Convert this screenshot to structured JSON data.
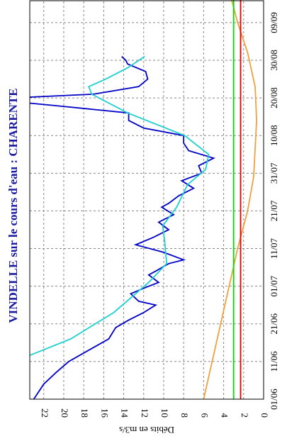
{
  "chart_data": {
    "type": "line",
    "title": "VINDELLE sur le cours d'eau : CHARENTE",
    "y_label": "Débits en m3/s",
    "xlim": [
      "01/06",
      "15/09"
    ],
    "xticks": [
      "01/06",
      "11/06",
      "21/06",
      "01/07",
      "11/07",
      "21/07",
      "31/07",
      "10/08",
      "20/08",
      "30/08",
      "09/09"
    ],
    "ylim": [
      0,
      23.4
    ],
    "yticks": [
      0,
      2,
      4,
      6,
      8,
      10,
      12,
      14,
      16,
      18,
      20,
      22
    ],
    "grid": true,
    "series": [
      {
        "color": "#0000c8",
        "x": [
          "01/06",
          "05/06",
          "08/06",
          "11/06",
          "14/06",
          "17/06",
          "20/06",
          "22/06",
          "24/06",
          "26/06",
          "27/06",
          "29/06",
          "01/07",
          "02/07",
          "04/07",
          "05/07",
          "07/07",
          "08/07",
          "10/07",
          "12/07",
          "14/07",
          "16/07",
          "18/07",
          "20/07",
          "22/07",
          "23/07",
          "25/07",
          "27/07",
          "29/07",
          "31/07",
          "02/08",
          "04/08",
          "06/08",
          "08/08",
          "10/08",
          "12/08",
          "14/08",
          "16/08",
          "18/08",
          "19/08",
          "20/08",
          "21/08",
          "23/08",
          "25/08",
          "27/08",
          "29/08",
          "30/08",
          "31/08"
        ],
        "values": [
          23,
          22,
          20.8,
          19.5,
          17.5,
          15.5,
          14.8,
          13.5,
          12,
          10.8,
          12.5,
          13.3,
          11.5,
          10.5,
          11.5,
          10.8,
          9.5,
          8,
          10,
          12.8,
          11,
          9.5,
          10.5,
          9,
          10.2,
          9.5,
          8.5,
          7,
          8.2,
          6.2,
          6.5,
          5,
          7.5,
          8,
          8,
          12,
          13.5,
          13.5,
          21,
          25,
          25,
          17,
          12.5,
          11.6,
          11.8,
          13.6,
          13.8,
          14.2
        ]
      },
      {
        "color": "#20d0d0",
        "x": [
          "12/06",
          "17/06",
          "24/06",
          "02/07",
          "07/07",
          "13/07",
          "17/07",
          "22/07",
          "28/07",
          "01/08",
          "05/08",
          "10/08",
          "16/08",
          "21/08",
          "23/08",
          "25/08",
          "28/08",
          "31/08"
        ],
        "values": [
          24,
          19.3,
          15,
          11.5,
          9.7,
          9.9,
          10.1,
          8.7,
          7.6,
          5.8,
          5.5,
          7.9,
          13.6,
          17.2,
          17.5,
          15.8,
          13.6,
          11.9
        ]
      },
      {
        "color": "#f0a040",
        "x": [
          "01/06",
          "21/06",
          "11/07",
          "21/07",
          "30/07",
          "14/08",
          "23/08",
          "01/09",
          "09/09",
          "15/09"
        ],
        "values": [
          6.0,
          4.3,
          2.6,
          1.6,
          1.0,
          0.7,
          0.85,
          1.6,
          2.6,
          3.2
        ]
      },
      {
        "color": "#00e000",
        "x": [
          "01/06",
          "15/09"
        ],
        "values": [
          3.0,
          3.0
        ]
      },
      {
        "color": "#e00000",
        "x": [
          "01/06",
          "15/09"
        ],
        "values": [
          2.3,
          2.3
        ]
      }
    ]
  }
}
